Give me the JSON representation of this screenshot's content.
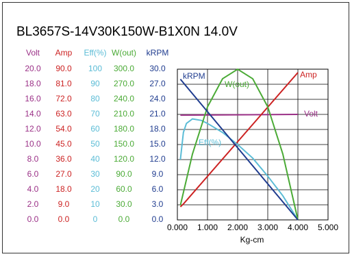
{
  "chart_data": {
    "type": "line",
    "title": "BL3657S-14V30K150W-B1X0N   14.0V",
    "xlabel": "Kg-cm",
    "xlim": [
      0,
      5
    ],
    "xticks": [
      {
        "value": 0,
        "label": "0.000"
      },
      {
        "value": 1,
        "label": "1.000"
      },
      {
        "value": 2,
        "label": "2.000"
      },
      {
        "value": 3,
        "label": "3.000"
      },
      {
        "value": 4,
        "label": "4.000"
      },
      {
        "value": 5,
        "label": "5.000"
      }
    ],
    "grid": true,
    "series": [
      {
        "name": "Volt",
        "color": "#9a2f86",
        "ylim": [
          0,
          20
        ],
        "yticks": [
          {
            "value": 0,
            "label": "0.0"
          },
          {
            "value": 2,
            "label": "2.0"
          },
          {
            "value": 4,
            "label": "4.0"
          },
          {
            "value": 6,
            "label": "6.0"
          },
          {
            "value": 8,
            "label": "8.0"
          },
          {
            "value": 10,
            "label": "10.0"
          },
          {
            "value": 12,
            "label": "12.0"
          },
          {
            "value": 14,
            "label": "14.0"
          },
          {
            "value": 16,
            "label": "16.0"
          },
          {
            "value": 18,
            "label": "18.0"
          },
          {
            "value": 20,
            "label": "20.0"
          }
        ],
        "x": [
          0.1,
          4.0
        ],
        "values": [
          13.9,
          14.0
        ]
      },
      {
        "name": "Amp",
        "color": "#cc2222",
        "ylim": [
          0,
          90
        ],
        "yticks": [
          {
            "value": 0,
            "label": "0.0"
          },
          {
            "value": 9,
            "label": "9.0"
          },
          {
            "value": 18,
            "label": "18.0"
          },
          {
            "value": 27,
            "label": "27.0"
          },
          {
            "value": 36,
            "label": "36.0"
          },
          {
            "value": 45,
            "label": "45.0"
          },
          {
            "value": 54,
            "label": "54.0"
          },
          {
            "value": 63,
            "label": "63.0"
          },
          {
            "value": 72,
            "label": "72.0"
          },
          {
            "value": 81,
            "label": "81.0"
          },
          {
            "value": 90,
            "label": "90.0"
          }
        ],
        "x": [
          0.1,
          0.2,
          4.0
        ],
        "values": [
          7.8,
          9.5,
          88
        ]
      },
      {
        "name": "Eff(%)",
        "color": "#5bbcd6",
        "ylim": [
          0,
          100
        ],
        "yticks": [
          0,
          10,
          20,
          30,
          40,
          50,
          60,
          70,
          80,
          90,
          100
        ],
        "x": [
          0.1,
          0.2,
          0.3,
          0.5,
          0.8,
          1.0,
          1.5,
          2.0,
          2.5,
          3.0,
          3.5,
          4.0
        ],
        "values": [
          40,
          58,
          64,
          67,
          66,
          64,
          58,
          50,
          41,
          29,
          16,
          0
        ]
      },
      {
        "name": "W(out)",
        "color": "#4aaa35",
        "ylim": [
          0,
          300
        ],
        "yticks": [
          {
            "value": 0,
            "label": "0.0"
          },
          {
            "value": 30,
            "label": "30.0"
          },
          {
            "value": 60,
            "label": "60.0"
          },
          {
            "value": 90,
            "label": "90.0"
          },
          {
            "value": 120,
            "label": "120.0"
          },
          {
            "value": 150,
            "label": "150.0"
          },
          {
            "value": 180,
            "label": "180.0"
          },
          {
            "value": 210,
            "label": "210.0"
          },
          {
            "value": 240,
            "label": "240.0"
          },
          {
            "value": 270,
            "label": "270.0"
          },
          {
            "value": 300,
            "label": "300.0"
          }
        ],
        "x": [
          0.1,
          0.5,
          1.0,
          1.5,
          2.0,
          2.5,
          3.0,
          3.5,
          4.0
        ],
        "values": [
          29,
          131,
          225,
          281,
          300,
          281,
          225,
          131,
          0
        ]
      },
      {
        "name": "kRPM",
        "color": "#1f3c8f",
        "ylim": [
          0,
          30
        ],
        "yticks": [
          {
            "value": 0,
            "label": "0.0"
          },
          {
            "value": 3,
            "label": "3.0"
          },
          {
            "value": 6,
            "label": "6.0"
          },
          {
            "value": 9,
            "label": "9.0"
          },
          {
            "value": 12,
            "label": "12.0"
          },
          {
            "value": 15,
            "label": "15.0"
          },
          {
            "value": 18,
            "label": "18.0"
          },
          {
            "value": 21,
            "label": "21.0"
          },
          {
            "value": 24,
            "label": "24.0"
          },
          {
            "value": 27,
            "label": "27.0"
          },
          {
            "value": 30,
            "label": "30.0"
          }
        ],
        "x": [
          0.1,
          4.0
        ],
        "values": [
          28.0,
          0
        ]
      }
    ]
  }
}
